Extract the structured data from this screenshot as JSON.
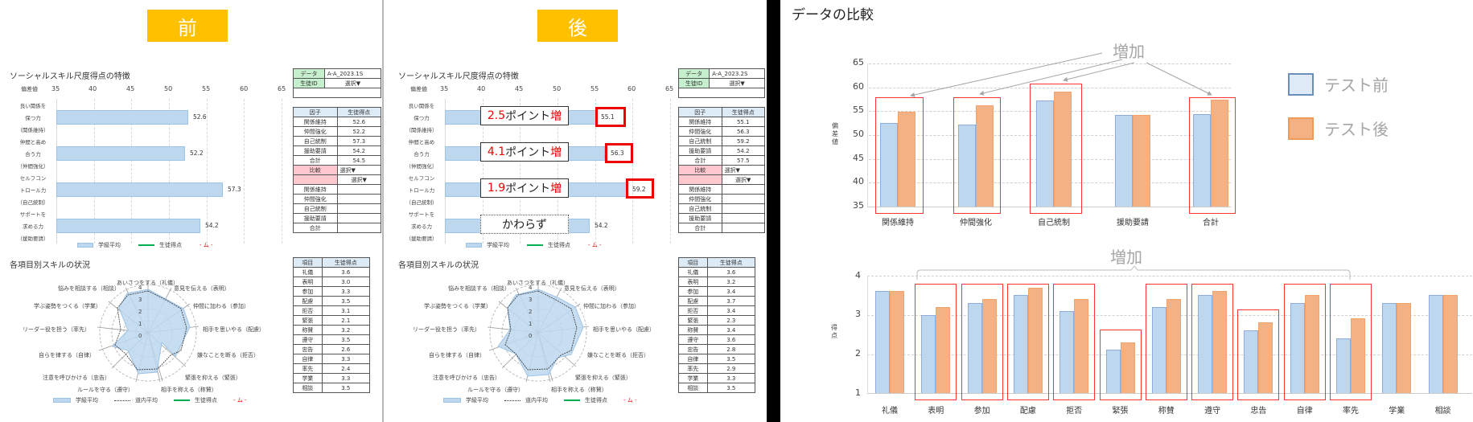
{
  "before": {
    "badge": "前",
    "bar_section_title": "ソーシャルスキル尺度得点の特徴",
    "axis_label": "偏差値",
    "axis_ticks": [
      "35",
      "40",
      "45",
      "50",
      "55",
      "60",
      "65"
    ],
    "factors": [
      {
        "l1": "良い関係を",
        "l2": "保つ力",
        "l3": "（関係維持）",
        "value": "52.6"
      },
      {
        "l1": "仲間と高め",
        "l2": "合う力",
        "l3": "（仲間強化）",
        "value": "52.2"
      },
      {
        "l1": "セルフコン",
        "l2": "トロール力",
        "l3": "（自己統制）",
        "value": "57.3"
      },
      {
        "l1": "サポートを",
        "l2": "求める力",
        "l3": "（援助要請）",
        "value": "54.2"
      }
    ],
    "bar_legend": {
      "class_avg": "学級平均",
      "student": "生徒得点",
      "red": "- ム -"
    },
    "info_table": {
      "data_label": "データ",
      "data_value": "A-A_2023.1S",
      "id_label": "生徒ID",
      "id_value": "選択▼"
    },
    "factor_table": {
      "headers": [
        "因子",
        "生徒得点"
      ],
      "rows": [
        [
          "関係維持",
          "52.6"
        ],
        [
          "仲間強化",
          "52.2"
        ],
        [
          "自己統制",
          "57.3"
        ],
        [
          "援助要請",
          "54.2"
        ],
        [
          "合計",
          "54.5"
        ]
      ],
      "compare_label": "比較",
      "compare_value": "選択▼",
      "compare_value2": "選択▼",
      "compare_rows": [
        "関係維持",
        "仲間強化",
        "自己統制",
        "援助要請",
        "合計"
      ]
    },
    "radar_section_title": "各項目別スキルの状況",
    "radar_ticks": [
      "0",
      "1",
      "2",
      "3",
      "4"
    ],
    "radar_labels": [
      "あいさつをする（礼儀）",
      "意見を伝える（表明）",
      "仲間に加わる（参加）",
      "相手を思いやる（配慮）",
      "嫌なことを断る（拒否）",
      "緊張を抑える（緊張）",
      "相手を称える（称賛）",
      "ルールを守る（遵守）",
      "注意を呼びかける（忠告）",
      "自らを律する（自律）",
      "リーダー役を担う（率先）",
      "学ぶ姿勢をつくる（学業）",
      "悩みを相談する（相談）"
    ],
    "radar_legend": {
      "class_avg": "学級平均",
      "pref_avg": "道内平均",
      "student": "生徒得点",
      "red": "- ム -"
    },
    "item_table": {
      "headers": [
        "項目",
        "生徒得点"
      ],
      "rows": [
        [
          "礼儀",
          "3.6"
        ],
        [
          "表明",
          "3.0"
        ],
        [
          "参加",
          "3.3"
        ],
        [
          "配慮",
          "3.5"
        ],
        [
          "拒否",
          "3.1"
        ],
        [
          "緊張",
          "2.1"
        ],
        [
          "称賛",
          "3.2"
        ],
        [
          "遵守",
          "3.5"
        ],
        [
          "忠告",
          "2.6"
        ],
        [
          "自律",
          "3.3"
        ],
        [
          "率先",
          "2.4"
        ],
        [
          "学業",
          "3.3"
        ],
        [
          "相談",
          "3.5"
        ]
      ]
    }
  },
  "after": {
    "badge": "後",
    "bar_section_title": "ソーシャルスキル尺度得点の特徴",
    "axis_label": "偏差値",
    "axis_ticks": [
      "35",
      "40",
      "45",
      "50",
      "55",
      "60",
      "65"
    ],
    "factors": [
      {
        "l1": "良い関係を",
        "l2": "保つ力",
        "l3": "（関係維持）",
        "value": "55.1",
        "callout_num": "2.5",
        "callout_text": "ポイント",
        "callout_inc": "増"
      },
      {
        "l1": "仲間と高め",
        "l2": "合う力",
        "l3": "（仲間強化）",
        "value": "56.3",
        "callout_num": "4.1",
        "callout_text": "ポイント",
        "callout_inc": "増"
      },
      {
        "l1": "セルフコン",
        "l2": "トロール力",
        "l3": "（自己統制）",
        "value": "59.2",
        "callout_num": "1.9",
        "callout_text": "ポイント",
        "callout_inc": "増"
      },
      {
        "l1": "サポートを",
        "l2": "求める力",
        "l3": "（援助要請）",
        "value": "54.2",
        "callout_text": "かわらず"
      }
    ],
    "bar_legend": {
      "class_avg": "学級平均",
      "student": "生徒得点",
      "red": "- ム -"
    },
    "info_table": {
      "data_label": "データ",
      "data_value": "A-A_2023.2S",
      "id_label": "生徒ID",
      "id_value": "選択▼"
    },
    "factor_table": {
      "headers": [
        "因子",
        "生徒得点"
      ],
      "rows": [
        [
          "関係維持",
          "55.1"
        ],
        [
          "仲間強化",
          "56.3"
        ],
        [
          "自己統制",
          "59.2"
        ],
        [
          "援助要請",
          "54.2"
        ],
        [
          "合計",
          "57.5"
        ]
      ],
      "compare_label": "比較",
      "compare_value": "選択▼",
      "compare_value2": "選択▼",
      "compare_rows": [
        "関係維持",
        "仲間強化",
        "自己統制",
        "援助要請",
        "合計"
      ]
    },
    "radar_section_title": "各項目別スキルの状況",
    "radar_ticks": [
      "0",
      "1",
      "2",
      "3",
      "4"
    ],
    "radar_labels": [
      "あいさつをする（礼儀）",
      "意見を伝える（表明）",
      "仲間に加わる（参加）",
      "相手を思いやる（配慮）",
      "嫌なことを断る（拒否）",
      "緊張を抑える（緊張）",
      "相手を称える（称賛）",
      "ルールを守る（遵守）",
      "注意を呼びかける（忠告）",
      "自らを律する（自律）",
      "リーダー役を担う（率先）",
      "学ぶ姿勢をつくる（学業）",
      "悩みを相談する（相談）"
    ],
    "radar_legend": {
      "class_avg": "学級平均",
      "pref_avg": "道内平均",
      "student": "生徒得点",
      "red": "- ム -"
    },
    "item_table": {
      "headers": [
        "項目",
        "生徒得点"
      ],
      "rows": [
        [
          "礼儀",
          "3.6"
        ],
        [
          "表明",
          "3.2"
        ],
        [
          "参加",
          "3.4"
        ],
        [
          "配慮",
          "3.7"
        ],
        [
          "拒否",
          "3.4"
        ],
        [
          "緊張",
          "2.3"
        ],
        [
          "称賛",
          "3.4"
        ],
        [
          "遵守",
          "3.6"
        ],
        [
          "忠告",
          "2.8"
        ],
        [
          "自律",
          "3.5"
        ],
        [
          "率先",
          "2.9"
        ],
        [
          "学業",
          "3.3"
        ],
        [
          "相談",
          "3.5"
        ]
      ]
    }
  },
  "compare": {
    "title": "データの比較",
    "annotation_top": "増加",
    "annotation_bottom": "増加",
    "legend": {
      "before": "テスト前",
      "after": "テスト後"
    },
    "top_ylabel": "偏差値",
    "bottom_ylabel": "得点"
  },
  "colors": {
    "badge": "#ffc000",
    "before_bar": "#bdd7ee",
    "after_bar": "#f4b183",
    "highlight": "#ff0000",
    "annotation": "#a6a6a6"
  },
  "chart_data": [
    {
      "type": "bar",
      "title": "ソーシャルスキル尺度得点の特徴（前）",
      "orientation": "horizontal",
      "categories": [
        "関係維持",
        "仲間強化",
        "自己統制",
        "援助要請"
      ],
      "series": [
        {
          "name": "学級平均",
          "values": [
            52.6,
            52.2,
            57.3,
            54.2
          ]
        }
      ],
      "xlabel": "偏差値",
      "xlim": [
        35,
        65
      ]
    },
    {
      "type": "bar",
      "title": "ソーシャルスキル尺度得点の特徴（後）",
      "orientation": "horizontal",
      "categories": [
        "関係維持",
        "仲間強化",
        "自己統制",
        "援助要請"
      ],
      "series": [
        {
          "name": "学級平均",
          "values": [
            55.1,
            56.3,
            59.2,
            54.2
          ]
        }
      ],
      "annotations": [
        "2.5ポイント増",
        "4.1ポイント増",
        "1.9ポイント増",
        "かわらず"
      ],
      "xlabel": "偏差値",
      "xlim": [
        35,
        65
      ]
    },
    {
      "type": "radar",
      "title": "各項目別スキルの状況（前）",
      "categories": [
        "礼儀",
        "表明",
        "参加",
        "配慮",
        "拒否",
        "緊張",
        "称賛",
        "遵守",
        "忠告",
        "自律",
        "率先",
        "学業",
        "相談"
      ],
      "series": [
        {
          "name": "学級平均",
          "values": [
            3.6,
            3.0,
            3.3,
            3.5,
            3.1,
            2.1,
            3.2,
            3.5,
            2.6,
            3.3,
            2.4,
            3.3,
            3.5
          ]
        }
      ],
      "rlim": [
        0,
        4
      ]
    },
    {
      "type": "radar",
      "title": "各項目別スキルの状況（後）",
      "categories": [
        "礼儀",
        "表明",
        "参加",
        "配慮",
        "拒否",
        "緊張",
        "称賛",
        "遵守",
        "忠告",
        "自律",
        "率先",
        "学業",
        "相談"
      ],
      "series": [
        {
          "name": "学級平均",
          "values": [
            3.6,
            3.2,
            3.4,
            3.7,
            3.4,
            2.3,
            3.4,
            3.6,
            2.8,
            3.5,
            2.9,
            3.3,
            3.5
          ]
        }
      ],
      "rlim": [
        0,
        4
      ]
    },
    {
      "type": "bar",
      "title": "データの比較（因子）",
      "categories": [
        "関係維持",
        "仲間強化",
        "自己統制",
        "援助要請",
        "合計"
      ],
      "series": [
        {
          "name": "テスト前",
          "values": [
            52.6,
            52.2,
            57.3,
            54.2,
            54.5
          ]
        },
        {
          "name": "テスト後",
          "values": [
            55.1,
            56.3,
            59.2,
            54.2,
            57.5
          ]
        }
      ],
      "ylabel": "偏差値",
      "ylim": [
        35,
        65
      ],
      "annotation": "増加",
      "highlighted": [
        "関係維持",
        "仲間強化",
        "自己統制",
        "合計"
      ]
    },
    {
      "type": "bar",
      "title": "データの比較（項目）",
      "categories": [
        "礼儀",
        "表明",
        "参加",
        "配慮",
        "拒否",
        "緊張",
        "称賛",
        "遵守",
        "忠告",
        "自律",
        "率先",
        "学業",
        "相談"
      ],
      "series": [
        {
          "name": "テスト前",
          "values": [
            3.6,
            3.0,
            3.3,
            3.5,
            3.1,
            2.1,
            3.2,
            3.5,
            2.6,
            3.3,
            2.4,
            3.3,
            3.5
          ]
        },
        {
          "name": "テスト後",
          "values": [
            3.6,
            3.2,
            3.4,
            3.7,
            3.4,
            2.3,
            3.4,
            3.6,
            2.8,
            3.5,
            2.9,
            3.3,
            3.5
          ]
        }
      ],
      "ylabel": "得点",
      "ylim": [
        1,
        4
      ],
      "annotation": "増加",
      "highlighted": [
        "表明",
        "参加",
        "配慮",
        "拒否",
        "緊張",
        "称賛",
        "遵守",
        "忠告",
        "自律",
        "率先"
      ]
    }
  ]
}
